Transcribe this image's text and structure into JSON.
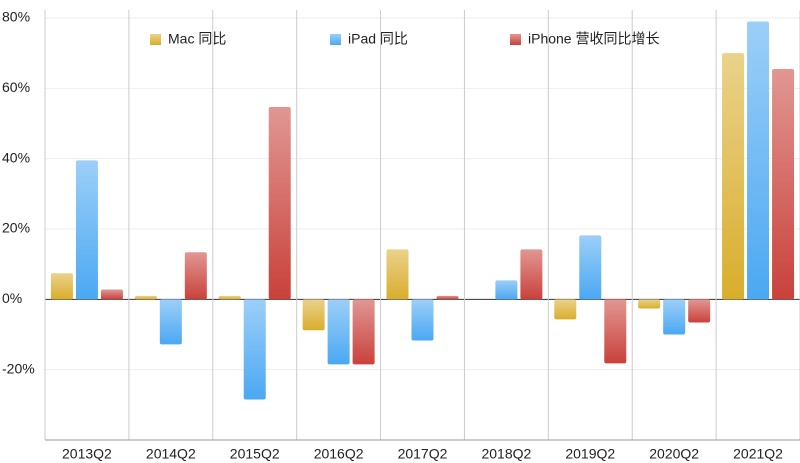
{
  "chart_data": {
    "type": "bar",
    "categories": [
      "2013Q2",
      "2014Q2",
      "2015Q2",
      "2016Q2",
      "2017Q2",
      "2018Q2",
      "2019Q2",
      "2020Q2",
      "2021Q2"
    ],
    "series": [
      {
        "name": "Mac 同比",
        "color": "#d9ad2c",
        "values": [
          7.4,
          1,
          1,
          -8.8,
          14.2,
          0,
          -5.7,
          -2.6,
          70
        ]
      },
      {
        "name": "iPad 同比",
        "color": "#4ba8f2",
        "values": [
          39.5,
          -12.8,
          -28.5,
          -18.5,
          -11.7,
          5.4,
          18.2,
          -10,
          79
        ]
      },
      {
        "name": "iPhone 营收同比增长",
        "color": "#c9413b",
        "values": [
          2.8,
          13.4,
          54.7,
          -18.5,
          1,
          14.2,
          -18.2,
          -6.6,
          65.5
        ]
      }
    ],
    "ylim": [
      -40,
      80
    ],
    "yticks": [
      {
        "value": -20,
        "label": "-20%"
      },
      {
        "value": 0,
        "label": "0%"
      },
      {
        "value": 20,
        "label": "20%"
      },
      {
        "value": 40,
        "label": "40%"
      },
      {
        "value": 60,
        "label": "60%"
      },
      {
        "value": 80,
        "label": "80%"
      }
    ],
    "grid": true
  }
}
